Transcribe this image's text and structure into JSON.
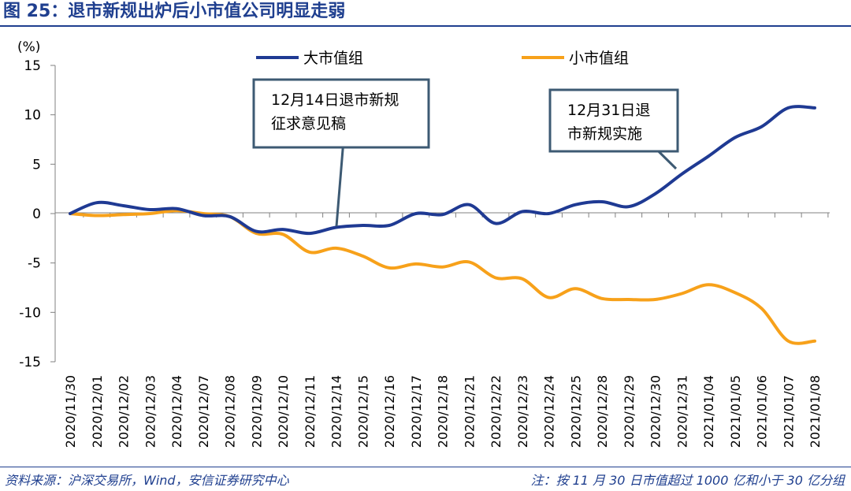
{
  "header": {
    "title": "图 25：退市新规出炉后小市值公司明显走弱"
  },
  "footer": {
    "source": "资料来源：沪深交易所，Wind，安信证券研究中心",
    "note": "注：按 11 月 30 日市值超过 1000 亿和小于 30 亿分组"
  },
  "colors": {
    "large": "#1f3a93",
    "small": "#f7a11a",
    "brand": "#1f3f8f",
    "callout_border": "#3d5a73"
  },
  "chart_data": {
    "type": "line",
    "ylabel": "(%)",
    "ylim": [
      -15,
      15
    ],
    "yticks": [
      15,
      10,
      5,
      0,
      -5,
      -10,
      -15
    ],
    "categories": [
      "2020/11/30",
      "2020/12/01",
      "2020/12/02",
      "2020/12/03",
      "2020/12/04",
      "2020/12/07",
      "2020/12/08",
      "2020/12/09",
      "2020/12/10",
      "2020/12/11",
      "2020/12/14",
      "2020/12/15",
      "2020/12/16",
      "2020/12/17",
      "2020/12/18",
      "2020/12/21",
      "2020/12/22",
      "2020/12/23",
      "2020/12/24",
      "2020/12/25",
      "2020/12/28",
      "2020/12/29",
      "2020/12/30",
      "2020/12/31",
      "2021/01/04",
      "2021/01/05",
      "2021/01/06",
      "2021/01/07",
      "2021/01/08"
    ],
    "series": [
      {
        "name": "大市值组",
        "key": "large",
        "values": [
          0.0,
          1.1,
          0.8,
          0.4,
          0.5,
          -0.2,
          -0.3,
          -1.8,
          -1.6,
          -2.0,
          -1.4,
          -1.2,
          -1.2,
          0.0,
          -0.1,
          0.9,
          -1.0,
          0.2,
          0.0,
          0.9,
          1.2,
          0.7,
          2.0,
          4.0,
          5.8,
          7.7,
          8.8,
          10.7,
          10.7
        ]
      },
      {
        "name": "小市值组",
        "key": "small",
        "values": [
          0.0,
          -0.2,
          -0.1,
          0.0,
          0.3,
          0.0,
          -0.3,
          -2.0,
          -2.1,
          -3.9,
          -3.5,
          -4.3,
          -5.5,
          -5.1,
          -5.4,
          -4.9,
          -6.5,
          -6.6,
          -8.5,
          -7.6,
          -8.6,
          -8.7,
          -8.7,
          -8.1,
          -7.2,
          -8.0,
          -9.6,
          -12.9,
          -12.9
        ]
      }
    ],
    "annotations": [
      {
        "lines": [
          "12月14日退市新规",
          "征求意见稿"
        ],
        "target_category": "2020/12/14"
      },
      {
        "lines": [
          "12月31日退",
          "市新规实施"
        ],
        "target_category": "2020/12/31"
      }
    ]
  }
}
